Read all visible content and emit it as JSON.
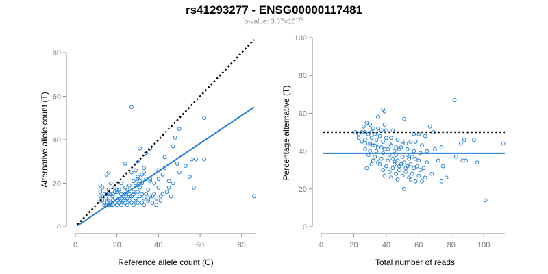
{
  "header": {
    "title": "rs41293277 - ENSG00000117481",
    "pvalue_prefix": "p-value: 3.57×10",
    "pvalue_exponent": "−74"
  },
  "colors": {
    "points": "#1f7ed6",
    "fit": "#1f7ed6",
    "reference": "#000000",
    "axis": "#8a8a8a"
  },
  "chart_data": [
    {
      "type": "scatter",
      "xlabel": "Reference allele count (C)",
      "ylabel": "Alternative allele count (T)",
      "xlim": [
        0,
        87
      ],
      "ylim": [
        0,
        80
      ],
      "xticks": [
        0,
        20,
        40,
        60,
        80
      ],
      "yticks": [
        0,
        20,
        40,
        60,
        80
      ],
      "fit_line": {
        "x": [
          1,
          86
        ],
        "y": [
          0.5,
          55
        ]
      },
      "reference_line": {
        "x": [
          1,
          86
        ],
        "y": [
          1,
          86
        ]
      },
      "points": [
        [
          27,
          55
        ],
        [
          62,
          50
        ],
        [
          50,
          45
        ],
        [
          48,
          41
        ],
        [
          36,
          36
        ],
        [
          31,
          36
        ],
        [
          47,
          37
        ],
        [
          34,
          34
        ],
        [
          43,
          32
        ],
        [
          56,
          31
        ],
        [
          58,
          31
        ],
        [
          62,
          31
        ],
        [
          30,
          30
        ],
        [
          24,
          29
        ],
        [
          49,
          29
        ],
        [
          53,
          28
        ],
        [
          33,
          27
        ],
        [
          43,
          27
        ],
        [
          40,
          26
        ],
        [
          29,
          26
        ],
        [
          27,
          25
        ],
        [
          16,
          25
        ],
        [
          15,
          24
        ],
        [
          55,
          23
        ],
        [
          36,
          22
        ],
        [
          30,
          22
        ],
        [
          28,
          21
        ],
        [
          22,
          20
        ],
        [
          12,
          19
        ],
        [
          17,
          20
        ],
        [
          19,
          18
        ],
        [
          13,
          18
        ],
        [
          16,
          17
        ],
        [
          20,
          17
        ],
        [
          25,
          17
        ],
        [
          31,
          18
        ],
        [
          35,
          17
        ],
        [
          40,
          18
        ],
        [
          57,
          18
        ],
        [
          45,
          18
        ],
        [
          86,
          14
        ],
        [
          12,
          16
        ],
        [
          14,
          15
        ],
        [
          15,
          15
        ],
        [
          16,
          15
        ],
        [
          17,
          15
        ],
        [
          18,
          15
        ],
        [
          20,
          16
        ],
        [
          22,
          15
        ],
        [
          24,
          15
        ],
        [
          26,
          15
        ],
        [
          28,
          15
        ],
        [
          30,
          16
        ],
        [
          32,
          15
        ],
        [
          34,
          15
        ],
        [
          36,
          14
        ],
        [
          38,
          15
        ],
        [
          42,
          15
        ],
        [
          44,
          16
        ],
        [
          12,
          14
        ],
        [
          13,
          14
        ],
        [
          15,
          13
        ],
        [
          16,
          13
        ],
        [
          18,
          14
        ],
        [
          19,
          13
        ],
        [
          21,
          13
        ],
        [
          23,
          14
        ],
        [
          25,
          13
        ],
        [
          27,
          14
        ],
        [
          29,
          13
        ],
        [
          31,
          14
        ],
        [
          33,
          13
        ],
        [
          35,
          13
        ],
        [
          37,
          14
        ],
        [
          39,
          13
        ],
        [
          41,
          14
        ],
        [
          46,
          14
        ],
        [
          12,
          12
        ],
        [
          13,
          12
        ],
        [
          14,
          11
        ],
        [
          16,
          12
        ],
        [
          17,
          11
        ],
        [
          18,
          12
        ],
        [
          19,
          11
        ],
        [
          20,
          12
        ],
        [
          21,
          11
        ],
        [
          22,
          10
        ],
        [
          23,
          12
        ],
        [
          24,
          11
        ],
        [
          25,
          10
        ],
        [
          26,
          12
        ],
        [
          27,
          11
        ],
        [
          28,
          10
        ],
        [
          29,
          12
        ],
        [
          30,
          11
        ],
        [
          32,
          11
        ],
        [
          33,
          10
        ],
        [
          35,
          12
        ],
        [
          37,
          11
        ],
        [
          39,
          10
        ],
        [
          41,
          12
        ],
        [
          14,
          10
        ],
        [
          15,
          10
        ],
        [
          16,
          10
        ],
        [
          17,
          10
        ],
        [
          18,
          10
        ],
        [
          20,
          10
        ],
        [
          22,
          12
        ],
        [
          24,
          13
        ],
        [
          26,
          14
        ],
        [
          28,
          16
        ],
        [
          30,
          19
        ],
        [
          32,
          20
        ],
        [
          34,
          22
        ],
        [
          36,
          21
        ],
        [
          38,
          20
        ],
        [
          40,
          22
        ],
        [
          42,
          24
        ],
        [
          29,
          20
        ],
        [
          31,
          21
        ],
        [
          30,
          23
        ],
        [
          26,
          19
        ],
        [
          24,
          18
        ],
        [
          21,
          17
        ],
        [
          19,
          16
        ],
        [
          32,
          24
        ],
        [
          33,
          25
        ],
        [
          45,
          21
        ],
        [
          47,
          20
        ],
        [
          50,
          25
        ]
      ]
    },
    {
      "type": "scatter",
      "xlabel": "Total number of reads",
      "ylabel": "Percentage alternative (T)",
      "xlim": [
        0,
        113
      ],
      "ylim": [
        0,
        100
      ],
      "xticks": [
        0,
        20,
        40,
        60,
        80,
        100
      ],
      "yticks": [
        0,
        20,
        40,
        60,
        80,
        100
      ],
      "fit_line": {
        "x": [
          1,
          113
        ],
        "y": [
          38.8,
          38.8
        ]
      },
      "reference_line": {
        "x": [
          1,
          113
        ],
        "y": [
          50,
          50
        ]
      },
      "points": [
        [
          82,
          67
        ],
        [
          38,
          62
        ],
        [
          39,
          61
        ],
        [
          35,
          58
        ],
        [
          51,
          57
        ],
        [
          39,
          54
        ],
        [
          28,
          55
        ],
        [
          30,
          54
        ],
        [
          26,
          53
        ],
        [
          32,
          52
        ],
        [
          35,
          52
        ],
        [
          37,
          51
        ],
        [
          40,
          51
        ],
        [
          44,
          51
        ],
        [
          67,
          53
        ],
        [
          69,
          50
        ],
        [
          21,
          50
        ],
        [
          23,
          49
        ],
        [
          25,
          50
        ],
        [
          27,
          50
        ],
        [
          29,
          49
        ],
        [
          31,
          50
        ],
        [
          33,
          49
        ],
        [
          36,
          48
        ],
        [
          40,
          47
        ],
        [
          43,
          47
        ],
        [
          47,
          46
        ],
        [
          57,
          49
        ],
        [
          60,
          49
        ],
        [
          64,
          48
        ],
        [
          88,
          46
        ],
        [
          94,
          46
        ],
        [
          112,
          44
        ],
        [
          86,
          44
        ],
        [
          23,
          47
        ],
        [
          27,
          46
        ],
        [
          31,
          47
        ],
        [
          34,
          46
        ],
        [
          38,
          45
        ],
        [
          42,
          44
        ],
        [
          50,
          45
        ],
        [
          52,
          44
        ],
        [
          55,
          45
        ],
        [
          58,
          45
        ],
        [
          62,
          43
        ],
        [
          25,
          45
        ],
        [
          29,
          44
        ],
        [
          33,
          43
        ],
        [
          37,
          42
        ],
        [
          41,
          41
        ],
        [
          45,
          40
        ],
        [
          49,
          42
        ],
        [
          53,
          41
        ],
        [
          57,
          40
        ],
        [
          61,
          39
        ],
        [
          65,
          40
        ],
        [
          70,
          41
        ],
        [
          74,
          42
        ],
        [
          27,
          41
        ],
        [
          30,
          40
        ],
        [
          34,
          40
        ],
        [
          38,
          39
        ],
        [
          42,
          38
        ],
        [
          46,
          38
        ],
        [
          50,
          37
        ],
        [
          54,
          36
        ],
        [
          58,
          36
        ],
        [
          83,
          37
        ],
        [
          87,
          35
        ],
        [
          89,
          35
        ],
        [
          96,
          34
        ],
        [
          29,
          38
        ],
        [
          33,
          37
        ],
        [
          37,
          36
        ],
        [
          41,
          35
        ],
        [
          45,
          34
        ],
        [
          49,
          33
        ],
        [
          53,
          32
        ],
        [
          57,
          31
        ],
        [
          61,
          30
        ],
        [
          72,
          35
        ],
        [
          75,
          32
        ],
        [
          36,
          33
        ],
        [
          40,
          32
        ],
        [
          44,
          31
        ],
        [
          48,
          30
        ],
        [
          52,
          29
        ],
        [
          56,
          28
        ],
        [
          60,
          27
        ],
        [
          64,
          26
        ],
        [
          68,
          28
        ],
        [
          38,
          30
        ],
        [
          42,
          29
        ],
        [
          46,
          28
        ],
        [
          50,
          27
        ],
        [
          54,
          26
        ],
        [
          58,
          24
        ],
        [
          62,
          24
        ],
        [
          74,
          24
        ],
        [
          77,
          26
        ],
        [
          39,
          27
        ],
        [
          43,
          26
        ],
        [
          47,
          25
        ],
        [
          51,
          20
        ],
        [
          55,
          25
        ],
        [
          101,
          14
        ],
        [
          32,
          35
        ],
        [
          35,
          34
        ],
        [
          31,
          33
        ],
        [
          28,
          31
        ],
        [
          44,
          36
        ],
        [
          47,
          35
        ],
        [
          51,
          34
        ],
        [
          55,
          33
        ],
        [
          59,
          32
        ],
        [
          63,
          31
        ],
        [
          30,
          44
        ],
        [
          32,
          43
        ],
        [
          35,
          42
        ],
        [
          39,
          41
        ],
        [
          43,
          43
        ],
        [
          46,
          42
        ],
        [
          48,
          41
        ],
        [
          53,
          38
        ],
        [
          56,
          37
        ],
        [
          60,
          35
        ],
        [
          65,
          34
        ],
        [
          45,
          33
        ],
        [
          48,
          32
        ],
        [
          52,
          31
        ]
      ]
    }
  ]
}
